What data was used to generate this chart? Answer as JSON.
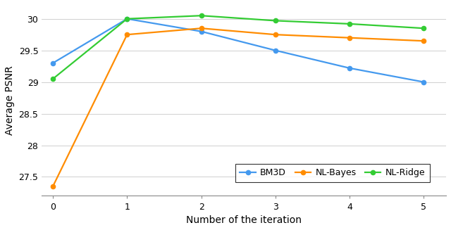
{
  "iterations": [
    0,
    1,
    2,
    3,
    4,
    5
  ],
  "BM3D": [
    29.3,
    30.0,
    29.8,
    29.5,
    29.22,
    29.0
  ],
  "NL_Bayes": [
    27.35,
    29.75,
    29.85,
    29.75,
    29.7,
    29.65
  ],
  "NL_Ridge": [
    29.05,
    30.0,
    30.05,
    29.97,
    29.92,
    29.85
  ],
  "colors": {
    "BM3D": "#4499EE",
    "NL_Bayes": "#FF8C00",
    "NL_Ridge": "#33CC33"
  },
  "xlabel": "Number of the iteration",
  "ylabel": "Average PSNR",
  "ylim": [
    27.2,
    30.22
  ],
  "yticks": [
    27.5,
    28.0,
    28.5,
    29.0,
    29.5,
    30.0
  ],
  "ytick_labels": [
    "27.5",
    "28",
    "28.5",
    "29",
    "29.5",
    "30"
  ],
  "legend_labels": [
    "BM3D",
    "NL-Bayes",
    "NL-Ridge"
  ],
  "legend_keys": [
    "BM3D",
    "NL_Bayes",
    "NL_Ridge"
  ],
  "marker": "o",
  "linewidth": 1.6,
  "markersize": 4.5,
  "xlabel_fontsize": 10,
  "ylabel_fontsize": 10,
  "tick_fontsize": 9,
  "legend_fontsize": 9
}
